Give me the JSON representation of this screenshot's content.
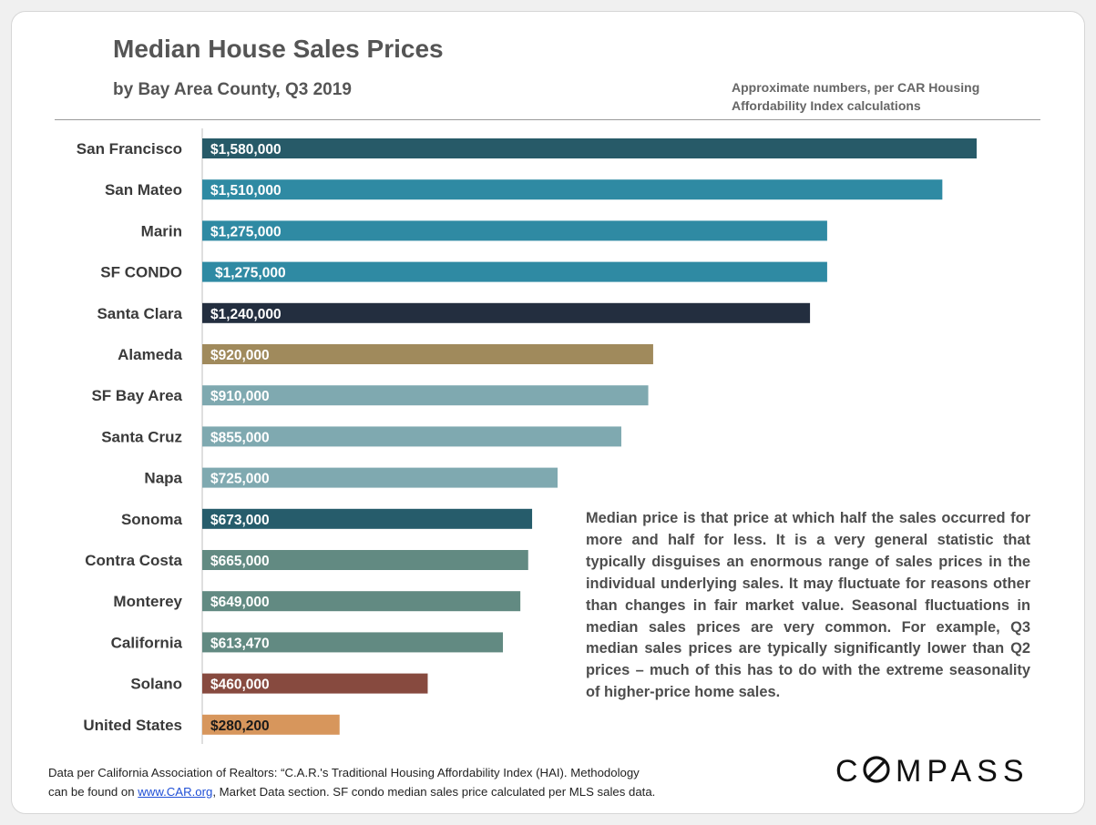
{
  "header": {
    "title": "Median House Sales Prices",
    "subtitle": "by Bay Area County, Q3 2019",
    "note_line1": "Approximate numbers, per CAR Housing",
    "note_line2": "Affordability Index calculations"
  },
  "paragraph": "Median price is that price at which half the sales occurred for more and half for less. It is a very general statistic that typically disguises an enormous range of sales prices in the individual underlying sales. It may fluctuate for reasons other than changes in fair market value. Seasonal fluctuations in median sales prices are very common. For example, Q3 median sales prices are typically significantly lower than Q2 prices – much of this has to do with the extreme seasonality of higher-price home sales.",
  "footer": {
    "line1": "Data per California Association of Realtors: “C.A.R.'s Traditional Housing Affordability Index (HAI). Methodology",
    "line2_prefix": "can be found on ",
    "link": "www.CAR.org",
    "line2_suffix": ",  Market Data section. SF condo median sales price calculated per MLS sales data."
  },
  "logo": {
    "text": "COMPASS"
  },
  "chart_data": {
    "type": "bar",
    "orientation": "horizontal",
    "xlim": [
      0,
      1600000
    ],
    "grid": false,
    "categories": [
      "San Francisco",
      "San Mateo",
      "Marin",
      "SF CONDO",
      "Santa Clara",
      "Alameda",
      "SF Bay Area",
      "Santa Cruz",
      "Napa",
      "Sonoma",
      "Contra Costa",
      "Monterey",
      "California",
      "Solano",
      "United States"
    ],
    "values": [
      1580000,
      1510000,
      1275000,
      1275000,
      1240000,
      920000,
      910000,
      855000,
      725000,
      673000,
      665000,
      649000,
      613470,
      460000,
      280200
    ],
    "value_labels": [
      "$1,580,000",
      "$1,510,000",
      "$1,275,000",
      "$1,275,000",
      "$1,240,000",
      "$920,000",
      "$910,000",
      "$855,000",
      "$725,000",
      "$673,000",
      "$665,000",
      "$649,000",
      "$613,470",
      "$460,000",
      "$280,200"
    ],
    "colors": [
      "#275a68",
      "#2f8aa3",
      "#2f8aa3",
      "#2f8aa3",
      "#232e3f",
      "#a08a5c",
      "#7fa9b0",
      "#7fa9b0",
      "#7fa9b0",
      "#265c6b",
      "#628a82",
      "#628a82",
      "#628a82",
      "#874a3f",
      "#d7965c"
    ],
    "label_colors": [
      "#ffffff",
      "#ffffff",
      "#ffffff",
      "#ffffff",
      "#ffffff",
      "#ffffff",
      "#ffffff",
      "#ffffff",
      "#ffffff",
      "#ffffff",
      "#ffffff",
      "#ffffff",
      "#ffffff",
      "#ffffff",
      "#1a1a1a"
    ]
  }
}
